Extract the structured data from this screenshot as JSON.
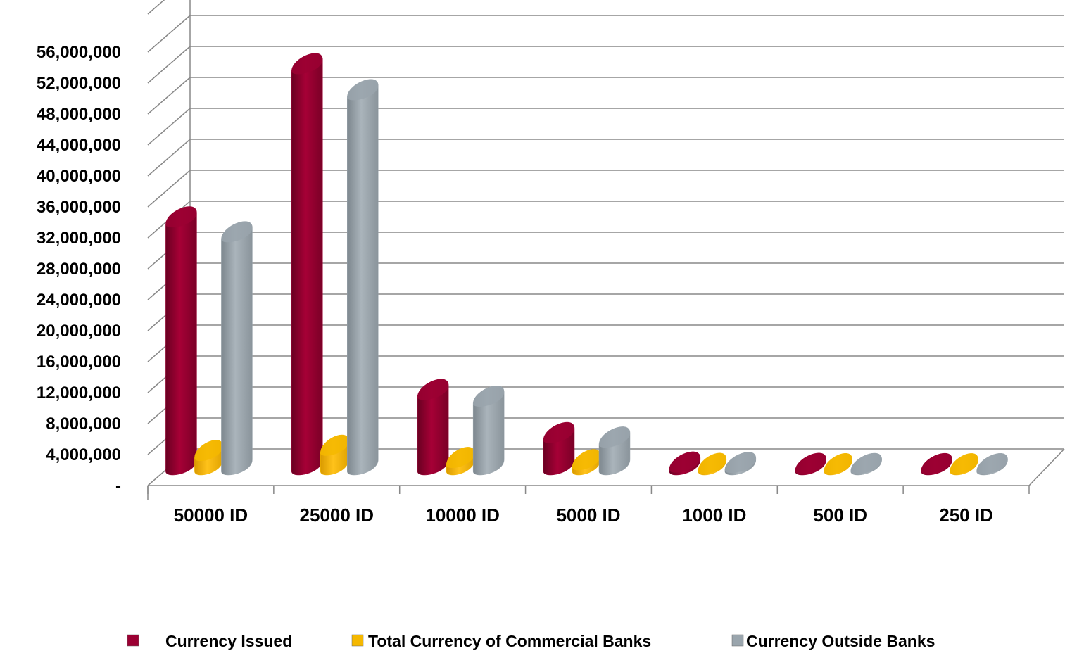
{
  "chart_data": {
    "type": "bar",
    "style": "3d-cylinder",
    "categories": [
      "50000 ID",
      "25000 ID",
      "10000 ID",
      "5000 ID",
      "1000 ID",
      "500 ID",
      "250 ID"
    ],
    "series": [
      {
        "name": "Currency Issued",
        "color": "#9b0033",
        "values": [
          33200000,
          53800000,
          10000000,
          4200000,
          240000,
          60000,
          30000
        ]
      },
      {
        "name": "Total Currency of Commercial Banks",
        "color": "#f5b800",
        "values": [
          1800000,
          2500000,
          860000,
          560000,
          60000,
          20000,
          12000
        ]
      },
      {
        "name": "Currency Outside Banks",
        "color": "#9aa5ad",
        "values": [
          31200000,
          50300000,
          9100000,
          3600000,
          180000,
          40000,
          18000
        ]
      }
    ],
    "yticks": [
      "-",
      "4,000,000",
      "8,000,000",
      "12,000,000",
      "16,000,000",
      "20,000,000",
      "24,000,000",
      "28,000,000",
      "32,000,000",
      "36,000,000",
      "40,000,000",
      "44,000,000",
      "48,000,000",
      "52,000,000",
      "56,000,000"
    ],
    "ylim": [
      0,
      56000000
    ],
    "grid": true,
    "legend_position": "bottom"
  }
}
